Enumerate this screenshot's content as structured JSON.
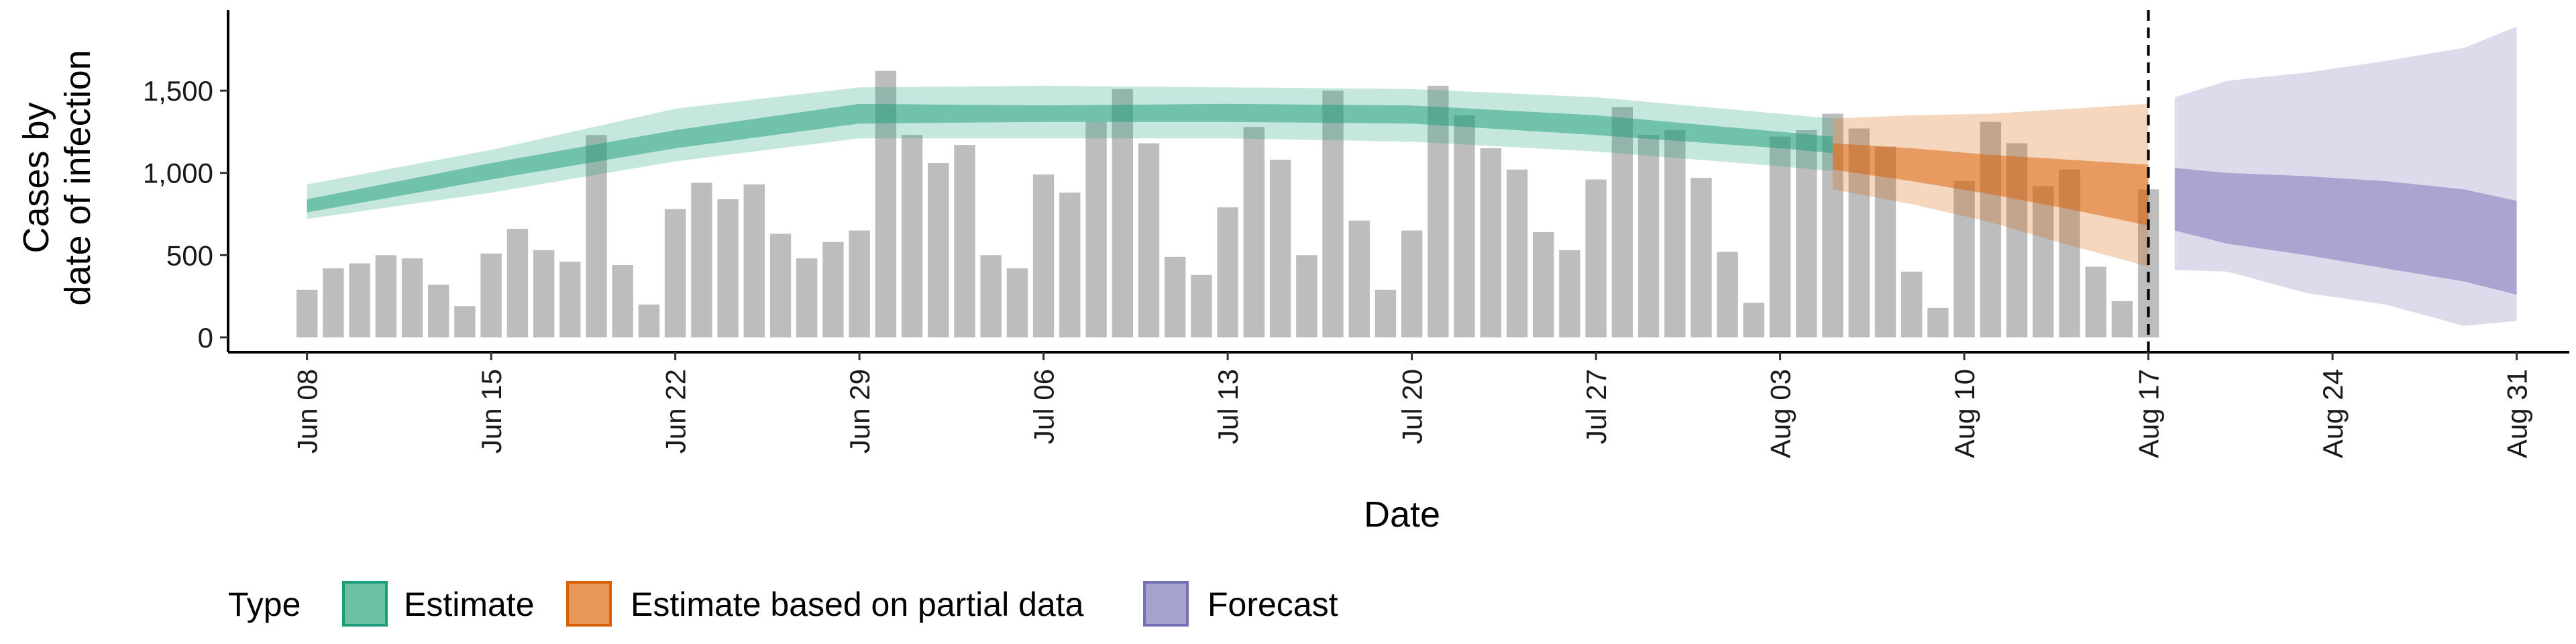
{
  "chart_data": {
    "type": "bar",
    "xlabel": "Date",
    "ylabel_lines": [
      "Cases by",
      "date of infection"
    ],
    "ylim": [
      -90,
      1990
    ],
    "yticks": [
      0,
      500,
      1000,
      1500
    ],
    "ytick_labels": [
      "0",
      "500",
      "1,000",
      "1,500"
    ],
    "xlim": [
      "2020-06-05",
      "2020-09-02"
    ],
    "xticks": [
      "2020-06-08",
      "2020-06-15",
      "2020-06-22",
      "2020-06-29",
      "2020-07-06",
      "2020-07-13",
      "2020-07-20",
      "2020-07-27",
      "2020-08-03",
      "2020-08-10",
      "2020-08-17",
      "2020-08-24",
      "2020-08-31"
    ],
    "xtick_labels": [
      "Jun 08",
      "Jun 15",
      "Jun 22",
      "Jun 29",
      "Jul 06",
      "Jul 13",
      "Jul 20",
      "Jul 27",
      "Aug 03",
      "Aug 10",
      "Aug 17",
      "Aug 24",
      "Aug 31"
    ],
    "vline": "2020-08-17",
    "bars": {
      "start": "2020-06-08",
      "color": "#bdbdbd",
      "values": [
        290,
        420,
        450,
        500,
        480,
        320,
        190,
        510,
        660,
        530,
        460,
        1230,
        440,
        200,
        780,
        940,
        840,
        930,
        630,
        480,
        580,
        650,
        1620,
        1230,
        1060,
        1170,
        500,
        420,
        990,
        880,
        1310,
        1510,
        1180,
        490,
        380,
        790,
        1280,
        1080,
        500,
        1500,
        710,
        290,
        650,
        1530,
        1350,
        1150,
        1020,
        640,
        530,
        960,
        1400,
        1230,
        1260,
        970,
        520,
        210,
        1220,
        1260,
        1360,
        1270,
        1160,
        400,
        180,
        950,
        1310,
        1180,
        920,
        1020,
        430,
        220,
        900
      ]
    },
    "series": [
      {
        "name": "Estimate",
        "color": "#1b9e77",
        "x": [
          "2020-06-08",
          "2020-06-15",
          "2020-06-22",
          "2020-06-29",
          "2020-07-06",
          "2020-07-13",
          "2020-07-20",
          "2020-07-27",
          "2020-08-03",
          "2020-08-05"
        ],
        "lower90": [
          720,
          880,
          1070,
          1210,
          1210,
          1210,
          1190,
          1130,
          1040,
          1010
        ],
        "upper90": [
          930,
          1140,
          1390,
          1520,
          1530,
          1520,
          1510,
          1460,
          1360,
          1330
        ],
        "lower50": [
          760,
          960,
          1150,
          1300,
          1310,
          1310,
          1300,
          1230,
          1150,
          1120
        ],
        "upper50": [
          840,
          1060,
          1260,
          1420,
          1410,
          1420,
          1410,
          1350,
          1250,
          1220
        ]
      },
      {
        "name": "Estimate based on partial data",
        "color": "#d95f02",
        "x": [
          "2020-08-05",
          "2020-08-08",
          "2020-08-11",
          "2020-08-14",
          "2020-08-17"
        ],
        "lower90": [
          900,
          810,
          700,
          560,
          430
        ],
        "upper90": [
          1330,
          1350,
          1360,
          1390,
          1420
        ],
        "lower50": [
          1020,
          950,
          870,
          780,
          680
        ],
        "upper50": [
          1180,
          1150,
          1110,
          1080,
          1050
        ]
      },
      {
        "name": "Forecast",
        "color": "#7570b3",
        "x": [
          "2020-08-18",
          "2020-08-20",
          "2020-08-23",
          "2020-08-26",
          "2020-08-29",
          "2020-08-31"
        ],
        "lower90": [
          410,
          400,
          270,
          200,
          70,
          100
        ],
        "upper90": [
          1460,
          1560,
          1610,
          1680,
          1760,
          1890
        ],
        "lower50": [
          650,
          570,
          500,
          420,
          340,
          260
        ],
        "upper50": [
          1030,
          1000,
          980,
          950,
          900,
          830
        ]
      }
    ],
    "legend": {
      "title": "Type",
      "position": "bottom",
      "entries": [
        "Estimate",
        "Estimate based on partial data",
        "Forecast"
      ]
    }
  }
}
